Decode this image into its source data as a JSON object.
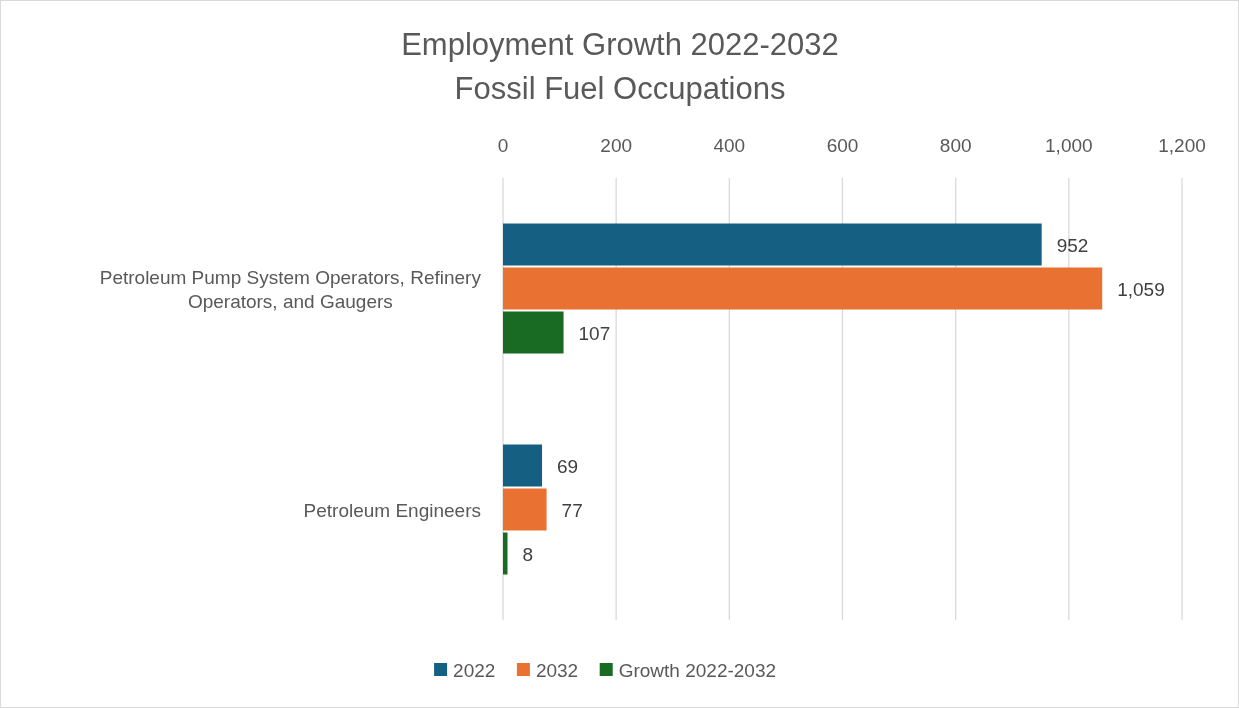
{
  "chart_data": {
    "type": "bar",
    "orientation": "horizontal",
    "title": "Employment Growth 2022-2032",
    "subtitle": "Fossil Fuel Occupations",
    "categories": [
      "Petroleum Pump System Operators, Refinery Operators, and Gaugers",
      "Petroleum Engineers"
    ],
    "series": [
      {
        "name": "2022",
        "color": "#156082",
        "values": [
          952,
          69
        ]
      },
      {
        "name": "2032",
        "color": "#e97132",
        "values": [
          1059,
          77
        ]
      },
      {
        "name": "Growth 2022-2032",
        "color": "#196b24",
        "values": [
          107,
          8
        ]
      }
    ],
    "value_labels": [
      [
        "952",
        "69"
      ],
      [
        "1,059",
        "77"
      ],
      [
        "107",
        "8"
      ]
    ],
    "xlim": [
      0,
      1200
    ],
    "xticks": [
      0,
      {
        "value": 200,
        "label": "200"
      },
      {
        "value": 400,
        "label": "400"
      },
      {
        "value": 600,
        "label": "600"
      },
      {
        "value": 800,
        "label": "800"
      },
      {
        "value": 1000,
        "label": "1,000"
      },
      {
        "value": 1200,
        "label": "1,200"
      }
    ],
    "grid": "x",
    "legend": "bottom"
  }
}
